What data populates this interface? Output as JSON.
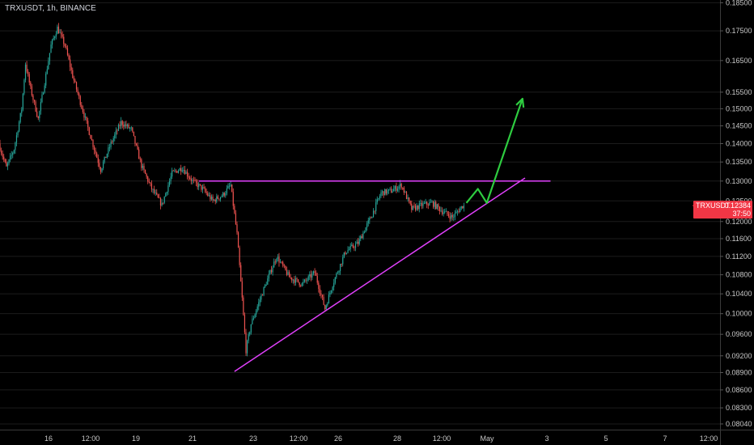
{
  "header": {
    "title": "TRXUSDT, 1h, BINANCE"
  },
  "price_tag": {
    "symbol": "TRXUSDT",
    "price": "0.12384",
    "countdown": "37:50",
    "color": "#f23645"
  },
  "colors": {
    "background": "#000000",
    "up": "#26a69a",
    "down": "#ef5350",
    "trendline": "#e040fb",
    "projection": "#2ecc40",
    "axis_text": "#c8c8c8"
  },
  "chart_data": {
    "type": "candlestick",
    "symbol": "TRXUSDT",
    "interval": "1h",
    "exchange": "BINANCE",
    "last_price": 0.12384,
    "y_scale": "log",
    "ylim": [
      0.0795,
      0.186
    ],
    "y_ticks": [
      "0.18500",
      "0.17500",
      "0.16500",
      "0.15500",
      "0.15000",
      "0.14500",
      "0.14000",
      "0.13500",
      "0.13000",
      "0.12500",
      "0.12000",
      "0.11600",
      "0.11200",
      "0.10800",
      "0.10400",
      "0.10000",
      "0.09600",
      "0.09200",
      "0.08900",
      "0.08600",
      "0.08300",
      "0.08040"
    ],
    "x_ticks": [
      "16",
      "12:00",
      "19",
      "21",
      "23",
      "12:00",
      "26",
      "28",
      "12:00",
      "May",
      "3",
      "5",
      "7",
      "12:00"
    ],
    "xlim": [
      "2019-04-15 08:00",
      "2019-05-08 21:00"
    ],
    "price_path": [
      [
        "2019-04-15 08:00",
        0.14
      ],
      [
        "2019-04-15 14:00",
        0.1335
      ],
      [
        "2019-04-15 20:00",
        0.1385
      ],
      [
        "2019-04-16 02:00",
        0.15
      ],
      [
        "2019-04-16 05:00",
        0.164
      ],
      [
        "2019-04-16 09:00",
        0.156
      ],
      [
        "2019-04-16 15:00",
        0.147
      ],
      [
        "2019-04-16 20:00",
        0.158
      ],
      [
        "2019-04-17 01:00",
        0.17
      ],
      [
        "2019-04-17 06:00",
        0.176
      ],
      [
        "2019-04-17 12:00",
        0.17
      ],
      [
        "2019-04-17 18:00",
        0.16
      ],
      [
        "2019-04-18 00:00",
        0.152
      ],
      [
        "2019-04-18 08:00",
        0.142
      ],
      [
        "2019-04-18 16:00",
        0.133
      ],
      [
        "2019-04-19 00:00",
        0.14
      ],
      [
        "2019-04-19 08:00",
        0.146
      ],
      [
        "2019-04-19 16:00",
        0.144
      ],
      [
        "2019-04-20 00:00",
        0.134
      ],
      [
        "2019-04-20 08:00",
        0.128
      ],
      [
        "2019-04-20 16:00",
        0.124
      ],
      [
        "2019-04-21 00:00",
        0.132
      ],
      [
        "2019-04-21 08:00",
        0.1335
      ],
      [
        "2019-04-21 16:00",
        0.13
      ],
      [
        "2019-04-22 00:00",
        0.128
      ],
      [
        "2019-04-22 08:00",
        0.125
      ],
      [
        "2019-04-22 16:00",
        0.1265
      ],
      [
        "2019-04-22 22:00",
        0.129
      ],
      [
        "2019-04-23 03:00",
        0.117
      ],
      [
        "2019-04-23 07:00",
        0.103
      ],
      [
        "2019-04-23 10:00",
        0.093
      ],
      [
        "2019-04-23 14:00",
        0.098
      ],
      [
        "2019-04-24 00:00",
        0.105
      ],
      [
        "2019-04-24 10:00",
        0.112
      ],
      [
        "2019-04-24 20:00",
        0.1075
      ],
      [
        "2019-04-25 06:00",
        0.106
      ],
      [
        "2019-04-25 16:00",
        0.1085
      ],
      [
        "2019-04-26 00:00",
        0.101
      ],
      [
        "2019-04-26 06:00",
        0.106
      ],
      [
        "2019-04-26 16:00",
        0.113
      ],
      [
        "2019-04-27 02:00",
        0.115
      ],
      [
        "2019-04-27 12:00",
        0.121
      ],
      [
        "2019-04-27 20:00",
        0.127
      ],
      [
        "2019-04-28 04:00",
        0.1275
      ],
      [
        "2019-04-28 12:00",
        0.129
      ],
      [
        "2019-04-28 20:00",
        0.123
      ],
      [
        "2019-04-29 04:00",
        0.124
      ],
      [
        "2019-04-29 12:00",
        0.1245
      ],
      [
        "2019-04-29 20:00",
        0.1225
      ],
      [
        "2019-04-30 04:00",
        0.121
      ],
      [
        "2019-04-30 12:00",
        0.1238
      ]
    ],
    "annotations": [
      {
        "type": "resistance_line",
        "points": [
          [
            "2019-04-21 20:00",
            0.13
          ],
          [
            "2019-05-03 08:00",
            0.13
          ]
        ]
      },
      {
        "type": "support_line",
        "points": [
          [
            "2019-04-23 00:00",
            0.0892
          ],
          [
            "2019-05-02 12:00",
            0.1308
          ]
        ]
      },
      {
        "type": "projection_arrow",
        "points": [
          [
            "2019-04-30 14:00",
            0.1245
          ],
          [
            "2019-04-30 23:00",
            0.128
          ],
          [
            "2019-05-01 06:00",
            0.1245
          ],
          [
            "2019-05-02 10:00",
            0.153
          ]
        ]
      }
    ]
  }
}
